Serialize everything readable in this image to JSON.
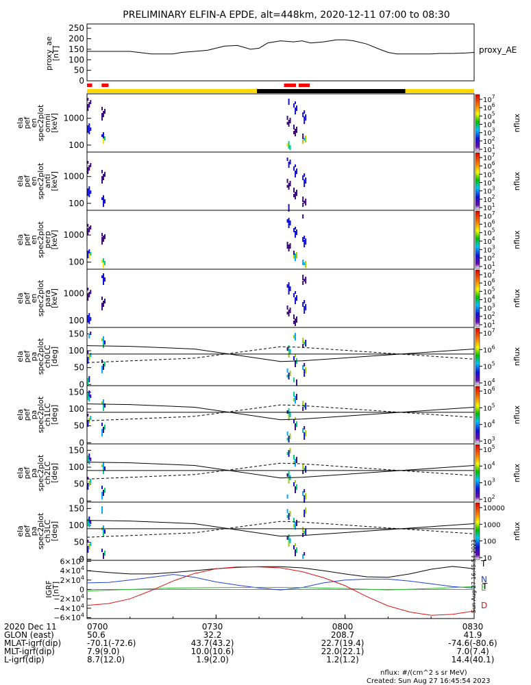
{
  "title": "PRELIMINARY ELFIN-A EPDE, alt=448km, 2020-12-11 07:00 to 08:30",
  "chart_data": [
    {
      "type": "line",
      "panel": "proxy_ae",
      "ylabel": [
        "proxy_ae",
        "[nT]"
      ],
      "ylim": [
        0,
        270
      ],
      "yticks": [
        "250",
        "200",
        "150",
        "100",
        "50",
        "0"
      ],
      "series": [
        {
          "name": "proxy_AE",
          "color": "#000000",
          "x": [
            0,
            2,
            5,
            8,
            10,
            12,
            15,
            18,
            20,
            22,
            25,
            28,
            30,
            32,
            35,
            38,
            40,
            42,
            45,
            48,
            50,
            52,
            55,
            58,
            60,
            62,
            65,
            68,
            70,
            72,
            75,
            78,
            80,
            82,
            85,
            88,
            90
          ],
          "values": [
            140,
            140,
            140,
            140,
            140,
            135,
            128,
            128,
            128,
            135,
            140,
            145,
            155,
            165,
            168,
            150,
            155,
            180,
            190,
            185,
            190,
            180,
            185,
            195,
            195,
            190,
            175,
            150,
            135,
            128,
            128,
            128,
            128,
            130,
            130,
            132,
            135
          ]
        }
      ]
    },
    {
      "type": "heatmap",
      "panel": "spec2plot_omni",
      "ylabel": [
        "ela",
        "pef",
        "en",
        "spec2plot",
        "omni",
        "[keV]"
      ],
      "yticks": [
        "1000",
        "100"
      ],
      "colorbar": {
        "label": "nflux",
        "ticks": [
          "10^7",
          "10^6",
          "10^5",
          "10^4",
          "10^3",
          "10^2",
          "10^1"
        ]
      }
    },
    {
      "type": "heatmap",
      "panel": "spec2plot_anti",
      "ylabel": [
        "ela",
        "pef",
        "en",
        "spec2plot",
        "anti",
        "[keV]"
      ],
      "yticks": [
        "1000",
        "100"
      ],
      "colorbar": {
        "label": "nflux",
        "ticks": [
          "10^7",
          "10^6",
          "10^5",
          "10^4",
          "10^3",
          "10^2",
          "10^1"
        ]
      }
    },
    {
      "type": "heatmap",
      "panel": "spec2plot_perp",
      "ylabel": [
        "ela",
        "pef",
        "en",
        "spec2plot",
        "perp",
        "[keV]"
      ],
      "yticks": [
        "1000",
        "100"
      ],
      "colorbar": {
        "label": "nflux",
        "ticks": [
          "10^7",
          "10^6",
          "10^5",
          "10^4",
          "10^3",
          "10^2",
          "10^1"
        ]
      }
    },
    {
      "type": "heatmap",
      "panel": "spec2plot_para",
      "ylabel": [
        "ela",
        "pef",
        "en",
        "spec2plot",
        "para",
        "[keV]"
      ],
      "yticks": [
        "1000",
        "100"
      ],
      "colorbar": {
        "label": "nflux",
        "ticks": [
          "10^7",
          "10^6",
          "10^5",
          "10^4",
          "10^3",
          "10^2",
          "10^1"
        ]
      }
    },
    {
      "type": "heatmap",
      "panel": "spec2plot_ch0LC",
      "ylabel": [
        "ela",
        "pef",
        "pa",
        "spec2plot",
        "ch0LC",
        "[deg]"
      ],
      "yticks": [
        "150",
        "100",
        "50",
        "0"
      ],
      "colorbar": {
        "label": "nflux",
        "ticks": [
          "10^7",
          "10^6",
          "10^5",
          "10^4"
        ]
      }
    },
    {
      "type": "heatmap",
      "panel": "spec2plot_ch1LC",
      "ylabel": [
        "ela",
        "pef",
        "pa",
        "spec2plot",
        "ch1LC",
        "[deg]"
      ],
      "yticks": [
        "150",
        "100",
        "50",
        "0"
      ],
      "colorbar": {
        "label": "nflux",
        "ticks": [
          "10^6",
          "10^5",
          "10^4",
          "10^3"
        ]
      }
    },
    {
      "type": "heatmap",
      "panel": "spec2plot_ch2LC",
      "ylabel": [
        "ela",
        "pef",
        "pa",
        "spec2plot",
        "ch2LC",
        "[deg]"
      ],
      "yticks": [
        "150",
        "100",
        "50",
        "0"
      ],
      "colorbar": {
        "label": "nflux",
        "ticks": [
          "10^5",
          "10^4",
          "10^3",
          "10^2"
        ]
      }
    },
    {
      "type": "heatmap",
      "panel": "spec2plot_ch3LC",
      "ylabel": [
        "ela",
        "pef",
        "pa",
        "spec2plot",
        "ch3LC",
        "[deg]"
      ],
      "yticks": [
        "150",
        "100",
        "50",
        "0"
      ],
      "colorbar": {
        "label": "nflux",
        "ticks": [
          "10000",
          "1000",
          "100",
          "10"
        ]
      }
    },
    {
      "type": "line",
      "panel": "igrf",
      "ylabel": [
        "IGRF",
        "[nT]"
      ],
      "ylim": [
        -62000,
        62000
      ],
      "yticks": [
        "6×10^4",
        "4×10^4",
        "2×10^4",
        "0",
        "−2×10^4",
        "−4×10^4",
        "−6×10^4"
      ],
      "series": [
        {
          "name": "T",
          "color": "#000000",
          "x": [
            0,
            5,
            10,
            15,
            20,
            25,
            30,
            35,
            40,
            45,
            50,
            55,
            60,
            65,
            70,
            75,
            80,
            85,
            90
          ],
          "values": [
            40000,
            36000,
            33000,
            33000,
            36000,
            40000,
            44000,
            47000,
            48500,
            48500,
            46000,
            40000,
            33000,
            27000,
            26000,
            33000,
            43000,
            49000,
            44000
          ]
        },
        {
          "name": "N",
          "color": "#1f3fd8",
          "x": [
            0,
            5,
            10,
            15,
            20,
            25,
            30,
            35,
            40,
            45,
            50,
            55,
            60,
            65,
            70,
            75,
            80,
            85,
            90
          ],
          "values": [
            14000,
            15000,
            20000,
            26000,
            32000,
            26000,
            16000,
            9000,
            3000,
            -1000,
            4000,
            14000,
            20000,
            22000,
            22000,
            18000,
            12000,
            6000,
            3000
          ]
        },
        {
          "name": "E",
          "color": "#22c322",
          "x": [
            0,
            10,
            20,
            30,
            40,
            50,
            60,
            70,
            80,
            90
          ],
          "values": [
            -3000,
            0,
            3000,
            4000,
            4500,
            4000,
            2000,
            -1000,
            2000,
            6000
          ]
        },
        {
          "name": "D",
          "color": "#e01010",
          "x": [
            0,
            5,
            10,
            15,
            20,
            25,
            30,
            35,
            40,
            45,
            50,
            55,
            60,
            65,
            70,
            75,
            80,
            85,
            90
          ],
          "values": [
            -34000,
            -30000,
            -20000,
            -2000,
            18000,
            34000,
            44000,
            48000,
            48000,
            46000,
            38000,
            25000,
            8000,
            -15000,
            -35000,
            -48000,
            -55000,
            -53000,
            -46000
          ]
        }
      ]
    }
  ],
  "time_axis": {
    "tick_labels": [
      "0700",
      "0730",
      "0800",
      "0830"
    ],
    "rows": [
      {
        "label": "2020 Dec 11",
        "values": [
          "0700",
          "0730",
          "0800",
          "0830"
        ]
      },
      {
        "label": "GLON (east)",
        "values": [
          "50.6",
          "32.2",
          "208.7",
          "41.9"
        ]
      },
      {
        "label": "MLAT-igrf(dip)",
        "values": [
          "-70.1(-72.6)",
          "43.7(43.2)",
          "22.7(19.4)",
          "-74.6(-80.6)"
        ]
      },
      {
        "label": "MLT-igrf(dip)",
        "values": [
          "7.9(9.0)",
          "10.0(10.6)",
          "22.0(22.1)",
          "7.0(7.4)"
        ]
      },
      {
        "label": "L-igrf(dip)",
        "values": [
          "8.7(12.0)",
          "1.9(2.0)",
          "1.2(1.2)",
          "14.4(40.1)"
        ]
      }
    ]
  },
  "proxy_label": "proxy_AE",
  "igrf_legend": [
    "T",
    "N",
    "E",
    "D"
  ],
  "side_stamp": "Sun Aug 27 16:45:54 2023",
  "footer": {
    "units": "nflux: #/(cm^2 s sr MeV)",
    "created": "Created: Sun Aug 27 16:45:54 2023"
  },
  "colors": {
    "sunlight_bar": "#ffd700",
    "shadow_bar": "#000000",
    "science_zone": "#ff0000"
  }
}
